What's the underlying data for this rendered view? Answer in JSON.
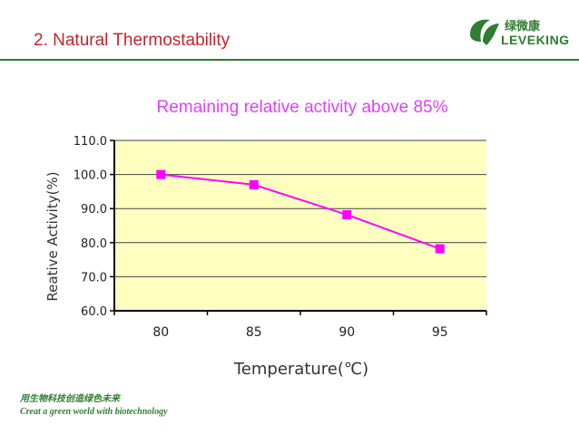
{
  "slide": {
    "title": "2. Natural Thermostability",
    "title_color": "#c0262d",
    "rule_color": "#2e7d32"
  },
  "logo": {
    "chinese": "绿微康",
    "english": "LEVEKING",
    "color": "#2e7d32",
    "icon": "leaf-logo-icon"
  },
  "footer": {
    "chinese": "用生物科技创造绿色未来",
    "english": "Creat a green world with biotechnology",
    "color": "#2e7d32"
  },
  "chart_data": {
    "type": "line",
    "title": "Remaining  relative activity above 85%",
    "title_color": "#e040fb",
    "xlabel": "Temperature(℃)",
    "ylabel": "Reative Activity(%)",
    "categories": [
      "80",
      "85",
      "90",
      "95"
    ],
    "series": [
      {
        "values": [
          100.0,
          97.0,
          88.2,
          78.2
        ],
        "color": "#ff00ff"
      }
    ],
    "ylim": [
      60,
      110
    ],
    "y_ticks": [
      "60.0",
      "70.0",
      "80.0",
      "90.0",
      "100.0",
      "110.0"
    ],
    "grid": true,
    "plot_background": "#ffffc0",
    "marker": "square"
  }
}
